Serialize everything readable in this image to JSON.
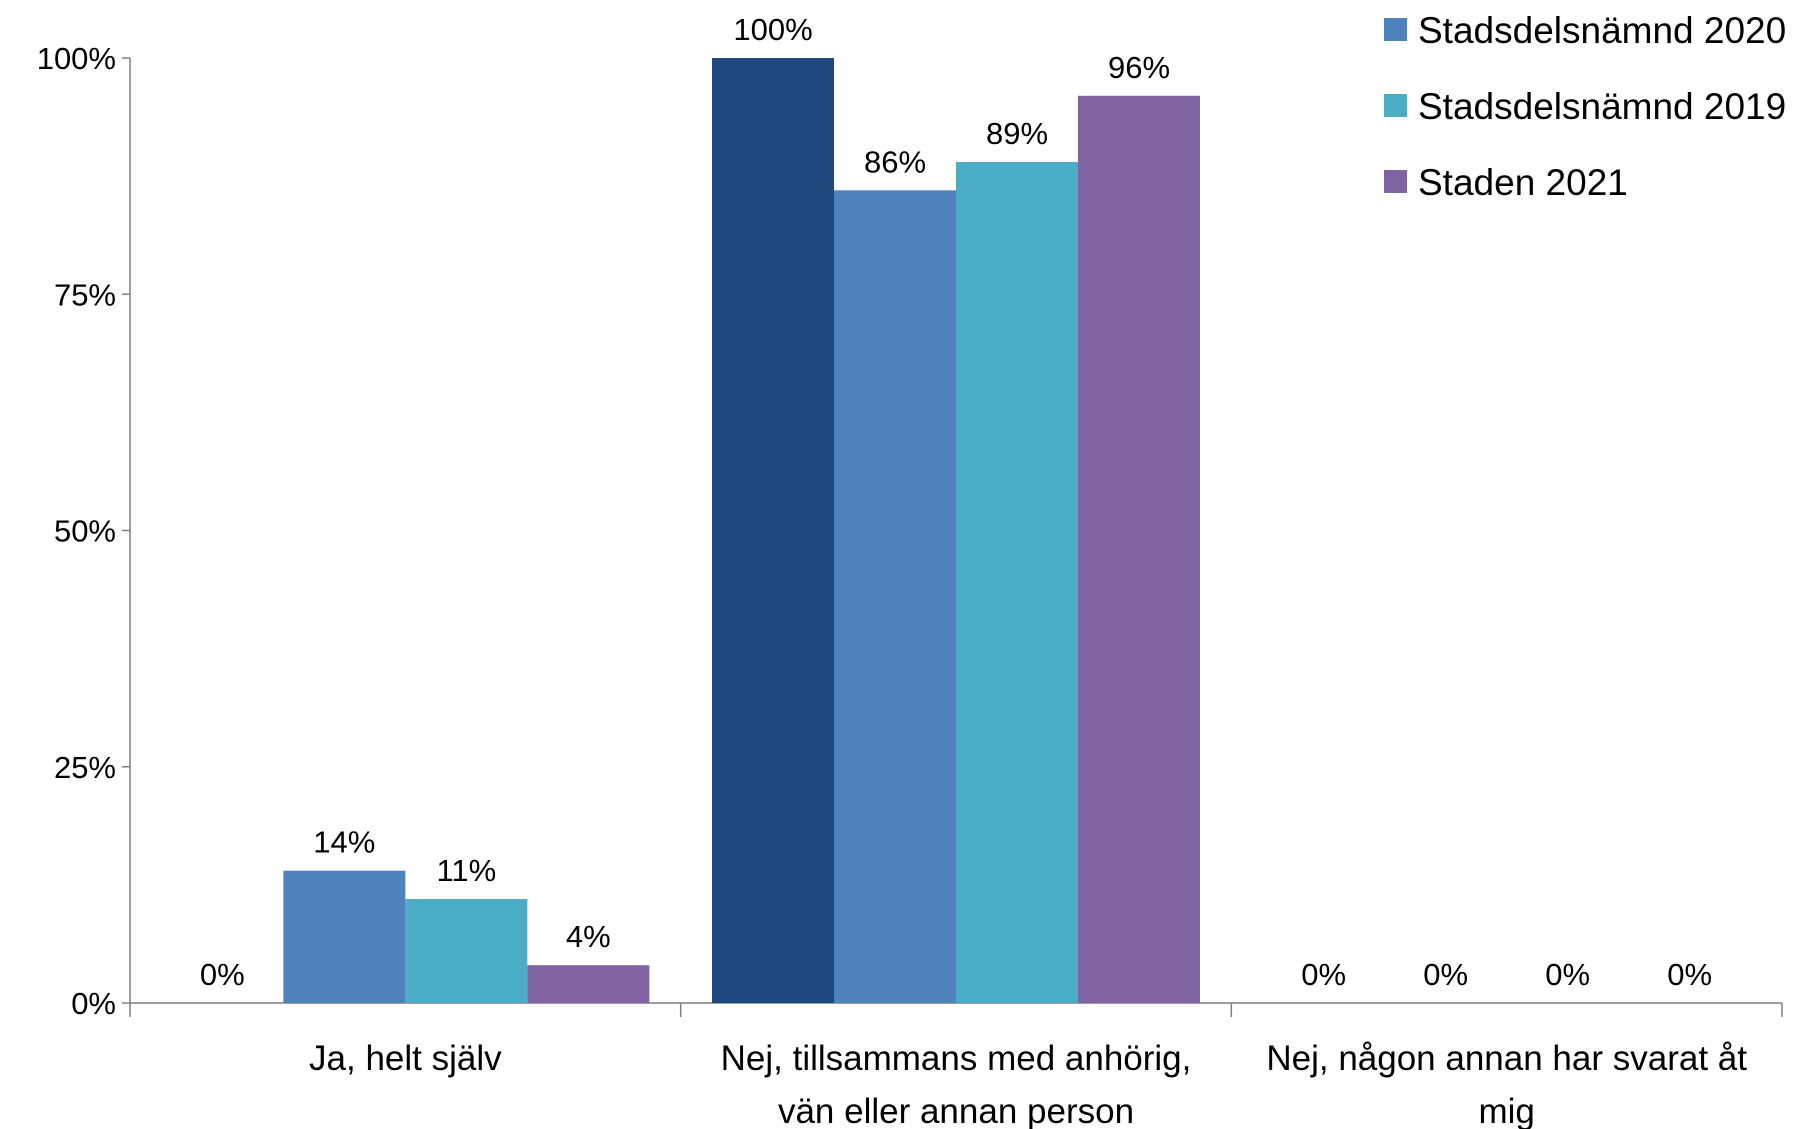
{
  "chart_data": {
    "type": "bar",
    "categories": [
      [
        "Ja, helt själv"
      ],
      [
        "Nej, tillsammans med anhörig,",
        "vän eller annan person"
      ],
      [
        "Nej, någon annan har svarat åt",
        "mig"
      ]
    ],
    "series": [
      {
        "name": "",
        "color": "#1f497d",
        "values": [
          0,
          100,
          0
        ]
      },
      {
        "name": "Stadsdelsnämnd 2020",
        "color": "#4f81bd",
        "values": [
          14,
          86,
          0
        ]
      },
      {
        "name": "Stadsdelsnämnd 2019",
        "color": "#4bacc6",
        "values": [
          11,
          89,
          0
        ]
      },
      {
        "name": "Staden 2021",
        "color": "#8064a2",
        "values": [
          4,
          96,
          0
        ]
      }
    ],
    "data_labels": [
      [
        "0%",
        "100%",
        "0%"
      ],
      [
        "14%",
        "86%",
        "0%"
      ],
      [
        "11%",
        "89%",
        "0%"
      ],
      [
        "4%",
        "96%",
        "0%"
      ]
    ],
    "y_ticks": [
      "0%",
      "25%",
      "50%",
      "75%",
      "100%"
    ],
    "ylim": [
      0,
      100
    ],
    "grid": false,
    "legend_position": "top-right",
    "title": "",
    "xlabel": "",
    "ylabel": ""
  }
}
